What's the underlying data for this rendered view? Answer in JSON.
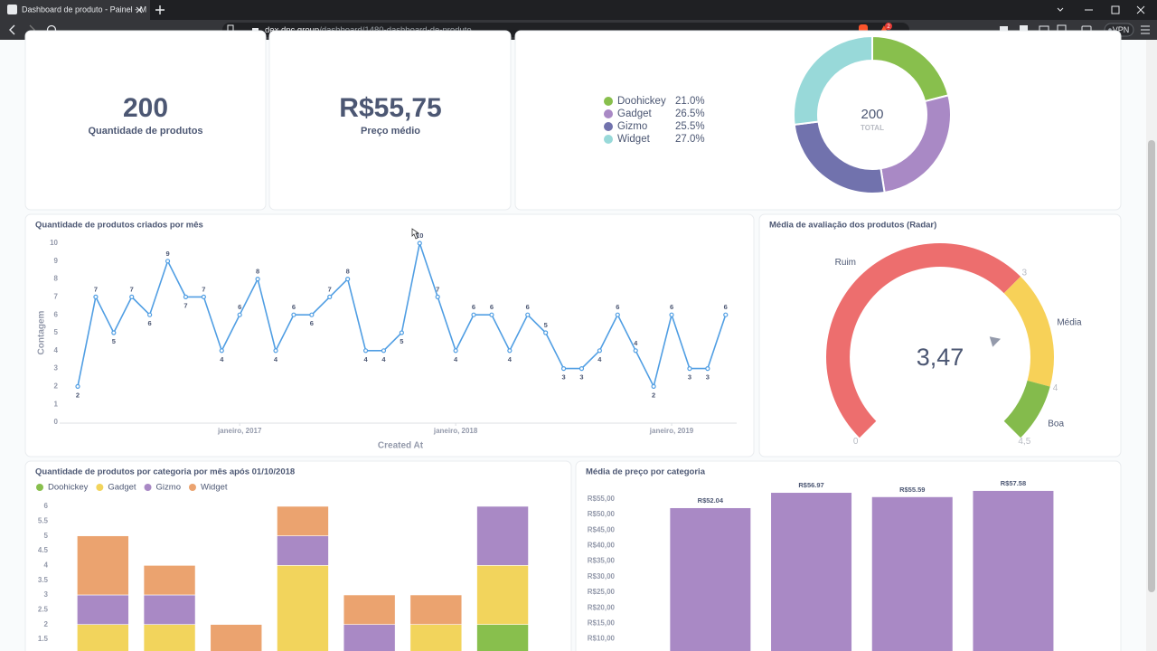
{
  "browser": {
    "tab_title": "Dashboard de produto - Painel - M",
    "url_domain": "dex.dnc.group",
    "url_path": "/dashboard/1480-dashboard-de-produto",
    "notifications": "2",
    "vpn": "VPN"
  },
  "cards": [
    {
      "value": 200,
      "label": "Quantidade de produtos"
    },
    {
      "value": "R$55,75",
      "label": "Preço médio"
    }
  ],
  "chart_data": [
    {
      "type": "pie",
      "donut": true,
      "categories": [
        "Doohickey",
        "Gadget",
        "Gizmo",
        "Widget"
      ],
      "values": [
        21.0,
        26.5,
        25.5,
        27.0
      ],
      "value_labels": [
        "21.0%",
        "26.5%",
        "25.5%",
        "27.0%"
      ],
      "colors": [
        "#88bf4d",
        "#a989c5",
        "#7172ad",
        "#98d9d9"
      ],
      "total": 200,
      "total_label": "TOTAL",
      "legend": "left"
    },
    {
      "type": "line",
      "title": "Quantidade de produtos criados por mês",
      "x_label": "Created At",
      "y_label": "Contagem",
      "categories": [
        null,
        null,
        null,
        null,
        null,
        null,
        null,
        null,
        null,
        "janeiro, 2017",
        null,
        null,
        null,
        null,
        null,
        null,
        null,
        null,
        null,
        null,
        null,
        "janeiro, 2018",
        null,
        null,
        null,
        null,
        null,
        null,
        null,
        null,
        null,
        null,
        null,
        "janeiro, 2019",
        null,
        null,
        null
      ],
      "values": [
        2,
        7,
        5,
        7,
        6,
        9,
        7,
        7,
        4,
        6,
        8,
        4,
        6,
        6,
        7,
        8,
        4,
        4,
        5,
        10,
        7,
        4,
        6,
        6,
        4,
        6,
        5,
        3,
        3,
        4,
        6,
        4,
        2,
        6,
        3,
        3,
        6
      ],
      "color": "#509ee3",
      "ylim": [
        0,
        10
      ],
      "yticks": [
        0,
        1,
        2,
        3,
        4,
        5,
        6,
        7,
        8,
        9,
        10
      ],
      "data_labels": true
    },
    {
      "type": "gauge",
      "title": "Média de avaliação dos produtos (Radar)",
      "value": 3.47,
      "value_label": "3,47",
      "lim": [
        0,
        4.5
      ],
      "ticks": [
        0,
        3,
        4,
        {
          "value": 4.5,
          "label": "4,5"
        }
      ],
      "segments": [
        {
          "name": "Ruim",
          "min": 0,
          "max": 3,
          "color": "#ed6e6e"
        },
        {
          "name": "Média",
          "min": 3,
          "max": 4,
          "color": "#f7d158"
        },
        {
          "name": "Boa",
          "min": 4,
          "max": 4.5,
          "color": "#84bb4c"
        }
      ]
    },
    {
      "type": "bar",
      "stacked": true,
      "title": "Quantidade de produtos por categoria por mês após 01/10/2018",
      "categories": [
        null,
        null,
        null,
        null,
        null,
        null,
        null
      ],
      "series": [
        {
          "name": "Doohickey",
          "color": "#88bf4d",
          "values": [
            0,
            0,
            0,
            0,
            0,
            0,
            2
          ]
        },
        {
          "name": "Gadget",
          "color": "#f2d45c",
          "values": [
            2,
            2,
            0,
            4,
            0,
            2,
            2
          ]
        },
        {
          "name": "Gizmo",
          "color": "#a989c5",
          "values": [
            1,
            1,
            0,
            1,
            2,
            0,
            2
          ]
        },
        {
          "name": "Widget",
          "color": "#eba36f",
          "values": [
            2,
            1,
            2,
            1,
            1,
            1,
            0
          ]
        }
      ],
      "ylim": [
        0,
        6
      ],
      "yticks": [
        1.5,
        2,
        2.5,
        3,
        3.5,
        4,
        4.5,
        5,
        5.5,
        6
      ],
      "legend": "top-left"
    },
    {
      "type": "bar",
      "title": "Média de preço por categoria",
      "categories": [
        null,
        null,
        null,
        null
      ],
      "values": [
        52.04,
        56.97,
        55.59,
        57.58
      ],
      "value_labels": [
        "R$52.04",
        "R$56.97",
        "R$55.59",
        "R$57.58"
      ],
      "color": "#a989c5",
      "ylim": [
        0,
        60
      ],
      "yticks": [
        {
          "value": 10,
          "label": "R$10,00"
        },
        {
          "value": 15,
          "label": "R$15,00"
        },
        {
          "value": 20,
          "label": "R$20,00"
        },
        {
          "value": 25,
          "label": "R$25,00"
        },
        {
          "value": 30,
          "label": "R$30,00"
        },
        {
          "value": 35,
          "label": "R$35,00"
        },
        {
          "value": 40,
          "label": "R$40,00"
        },
        {
          "value": 45,
          "label": "R$45,00"
        },
        {
          "value": 50,
          "label": "R$50,00"
        },
        {
          "value": 55,
          "label": "R$55,00"
        }
      ]
    }
  ]
}
